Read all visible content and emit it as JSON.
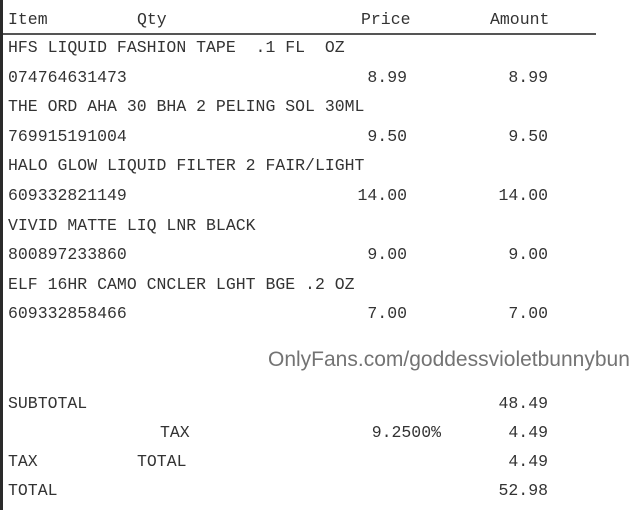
{
  "header": {
    "item": "Item",
    "qty": "Qty",
    "price": "Price",
    "amount": "Amount"
  },
  "items": [
    {
      "description": "HFS LIQUID FASHION TAPE  .1 FL  OZ",
      "code": "074764631473",
      "price": "8.99",
      "amount": "8.99"
    },
    {
      "description": "THE ORD AHA 30 BHA 2 PELING SOL 30ML",
      "code": "769915191004",
      "price": "9.50",
      "amount": "9.50"
    },
    {
      "description": "HALO GLOW LIQUID FILTER 2 FAIR/LIGHT",
      "code": "609332821149",
      "price": "14.00",
      "amount": "14.00"
    },
    {
      "description": "VIVID MATTE LIQ LNR BLACK",
      "code": "800897233860",
      "price": "9.00",
      "amount": "9.00"
    },
    {
      "description": "ELF 16HR CAMO CNCLER LGHT BGE .2 OZ",
      "code": "609332858466",
      "price": "7.00",
      "amount": "7.00"
    }
  ],
  "summary": {
    "subtotal_label": "SUBTOTAL",
    "subtotal": "48.49",
    "tax_label": "TAX",
    "tax_rate": "9.2500%",
    "tax": "4.49",
    "tax_total_label1": "TAX",
    "tax_total_label2": "TOTAL",
    "tax_total": "4.49",
    "total_label": "TOTAL",
    "total": "52.98"
  },
  "watermark": "OnlyFans.com/goddessvioletbunnybun"
}
